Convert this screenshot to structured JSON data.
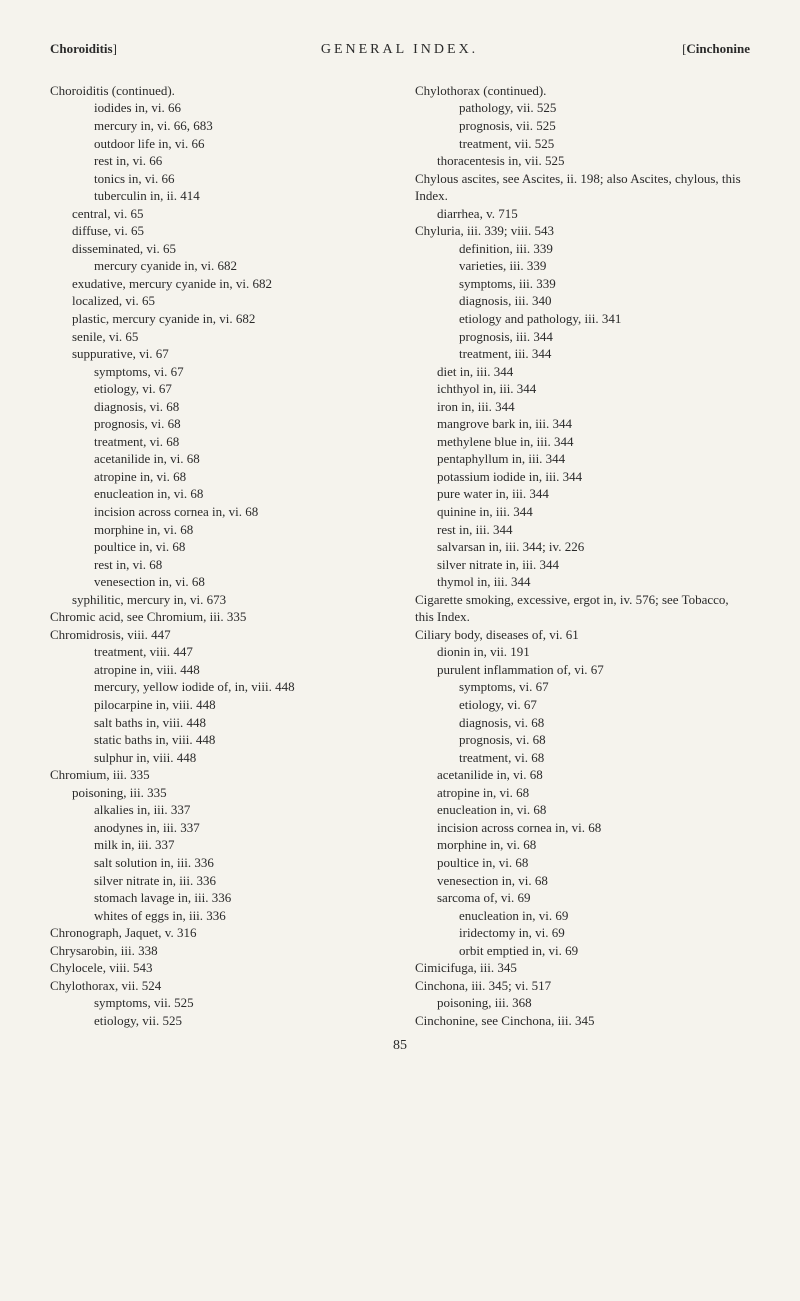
{
  "header": {
    "left": "Choroiditis",
    "center": "GENERAL INDEX.",
    "right": "Cinchonine"
  },
  "left_col": [
    {
      "lvl": 0,
      "text": "Choroiditis (continued)."
    },
    {
      "lvl": 2,
      "text": "iodides in, vi. 66"
    },
    {
      "lvl": 2,
      "text": "mercury in, vi. 66, 683"
    },
    {
      "lvl": 2,
      "text": "outdoor life in, vi. 66"
    },
    {
      "lvl": 2,
      "text": "rest in, vi. 66"
    },
    {
      "lvl": 2,
      "text": "tonics in, vi. 66"
    },
    {
      "lvl": 2,
      "text": "tuberculin in, ii. 414"
    },
    {
      "lvl": 1,
      "text": "central, vi. 65"
    },
    {
      "lvl": 1,
      "text": "diffuse, vi. 65"
    },
    {
      "lvl": 1,
      "text": "disseminated, vi. 65"
    },
    {
      "lvl": 2,
      "text": "mercury cyanide in, vi. 682"
    },
    {
      "lvl": 1,
      "text": "exudative, mercury cyanide in, vi. 682"
    },
    {
      "lvl": 1,
      "text": "localized, vi. 65"
    },
    {
      "lvl": 1,
      "text": "plastic, mercury cyanide in, vi. 682"
    },
    {
      "lvl": 1,
      "text": "senile, vi. 65"
    },
    {
      "lvl": 1,
      "text": "suppurative, vi. 67"
    },
    {
      "lvl": 2,
      "text": "symptoms, vi. 67"
    },
    {
      "lvl": 2,
      "text": "etiology, vi. 67"
    },
    {
      "lvl": 2,
      "text": "diagnosis, vi. 68"
    },
    {
      "lvl": 2,
      "text": "prognosis, vi. 68"
    },
    {
      "lvl": 2,
      "text": "treatment, vi. 68"
    },
    {
      "lvl": 2,
      "text": "acetanilide in, vi. 68"
    },
    {
      "lvl": 2,
      "text": "atropine in, vi. 68"
    },
    {
      "lvl": 2,
      "text": "enucleation in, vi. 68"
    },
    {
      "lvl": 2,
      "text": "incision across cornea in, vi. 68"
    },
    {
      "lvl": 2,
      "text": "morphine in, vi. 68"
    },
    {
      "lvl": 2,
      "text": "poultice in, vi. 68"
    },
    {
      "lvl": 2,
      "text": "rest in, vi. 68"
    },
    {
      "lvl": 2,
      "text": "venesection in, vi. 68"
    },
    {
      "lvl": 1,
      "text": "syphilitic, mercury in, vi. 673"
    },
    {
      "lvl": 0,
      "text": "Chromic acid, see Chromium, iii. 335"
    },
    {
      "lvl": 0,
      "text": "Chromidrosis, viii. 447"
    },
    {
      "lvl": 2,
      "text": "treatment, viii. 447"
    },
    {
      "lvl": 2,
      "text": "atropine in, viii. 448"
    },
    {
      "lvl": 2,
      "text": "mercury, yellow iodide of, in, viii. 448"
    },
    {
      "lvl": 2,
      "text": "pilocarpine in, viii. 448"
    },
    {
      "lvl": 2,
      "text": "salt baths in, viii. 448"
    },
    {
      "lvl": 2,
      "text": "static baths in, viii. 448"
    },
    {
      "lvl": 2,
      "text": "sulphur in, viii. 448"
    },
    {
      "lvl": 0,
      "text": "Chromium, iii. 335"
    },
    {
      "lvl": 1,
      "text": "poisoning, iii. 335"
    },
    {
      "lvl": 2,
      "text": "alkalies in, iii. 337"
    },
    {
      "lvl": 2,
      "text": "anodynes in, iii. 337"
    },
    {
      "lvl": 2,
      "text": "milk in, iii. 337"
    },
    {
      "lvl": 2,
      "text": "salt solution in, iii. 336"
    },
    {
      "lvl": 2,
      "text": "silver nitrate in, iii. 336"
    },
    {
      "lvl": 2,
      "text": "stomach lavage in, iii. 336"
    },
    {
      "lvl": 2,
      "text": "whites of eggs in, iii. 336"
    },
    {
      "lvl": 0,
      "text": "Chronograph, Jaquet, v. 316"
    },
    {
      "lvl": 0,
      "text": "Chrysarobin, iii. 338"
    },
    {
      "lvl": 0,
      "text": "Chylocele, viii. 543"
    },
    {
      "lvl": 0,
      "text": "Chylothorax, vii. 524"
    },
    {
      "lvl": 2,
      "text": "symptoms, vii. 525"
    },
    {
      "lvl": 2,
      "text": "etiology, vii. 525"
    }
  ],
  "right_col": [
    {
      "lvl": 0,
      "text": "Chylothorax (continued)."
    },
    {
      "lvl": 2,
      "text": "pathology, vii. 525"
    },
    {
      "lvl": 2,
      "text": "prognosis, vii. 525"
    },
    {
      "lvl": 2,
      "text": "treatment, vii. 525"
    },
    {
      "lvl": 1,
      "text": "thoracentesis in, vii. 525"
    },
    {
      "lvl": 0,
      "text": "Chylous ascites, see Ascites, ii. 198; also Ascites, chylous, this Index."
    },
    {
      "lvl": 1,
      "text": "diarrhea, v. 715"
    },
    {
      "lvl": 0,
      "text": "Chyluria, iii. 339; viii. 543"
    },
    {
      "lvl": 2,
      "text": "definition, iii. 339"
    },
    {
      "lvl": 2,
      "text": "varieties, iii. 339"
    },
    {
      "lvl": 2,
      "text": "symptoms, iii. 339"
    },
    {
      "lvl": 2,
      "text": "diagnosis, iii. 340"
    },
    {
      "lvl": 2,
      "text": "etiology and pathology, iii. 341"
    },
    {
      "lvl": 2,
      "text": "prognosis, iii. 344"
    },
    {
      "lvl": 2,
      "text": "treatment, iii. 344"
    },
    {
      "lvl": 1,
      "text": "diet in, iii. 344"
    },
    {
      "lvl": 1,
      "text": "ichthyol in, iii. 344"
    },
    {
      "lvl": 1,
      "text": "iron in, iii. 344"
    },
    {
      "lvl": 1,
      "text": "mangrove bark in, iii. 344"
    },
    {
      "lvl": 1,
      "text": "methylene blue in, iii. 344"
    },
    {
      "lvl": 1,
      "text": "pentaphyllum in, iii. 344"
    },
    {
      "lvl": 1,
      "text": "potassium iodide in, iii. 344"
    },
    {
      "lvl": 1,
      "text": "pure water in, iii. 344"
    },
    {
      "lvl": 1,
      "text": "quinine in, iii. 344"
    },
    {
      "lvl": 1,
      "text": "rest in, iii. 344"
    },
    {
      "lvl": 1,
      "text": "salvarsan in, iii. 344; iv. 226"
    },
    {
      "lvl": 1,
      "text": "silver nitrate in, iii. 344"
    },
    {
      "lvl": 1,
      "text": "thymol in, iii. 344"
    },
    {
      "lvl": 0,
      "text": "Cigarette smoking, excessive, ergot in, iv. 576; see Tobacco, this Index."
    },
    {
      "lvl": 0,
      "text": "Ciliary body, diseases of, vi. 61"
    },
    {
      "lvl": 1,
      "text": "dionin in, vii. 191"
    },
    {
      "lvl": 1,
      "text": "purulent inflammation of, vi. 67"
    },
    {
      "lvl": 2,
      "text": "symptoms, vi. 67"
    },
    {
      "lvl": 2,
      "text": "etiology, vi. 67"
    },
    {
      "lvl": 2,
      "text": "diagnosis, vi. 68"
    },
    {
      "lvl": 2,
      "text": "prognosis, vi. 68"
    },
    {
      "lvl": 2,
      "text": "treatment, vi. 68"
    },
    {
      "lvl": 1,
      "text": "acetanilide in, vi. 68"
    },
    {
      "lvl": 1,
      "text": "atropine in, vi. 68"
    },
    {
      "lvl": 1,
      "text": "enucleation in, vi. 68"
    },
    {
      "lvl": 1,
      "text": "incision across cornea in, vi. 68"
    },
    {
      "lvl": 1,
      "text": "morphine in, vi. 68"
    },
    {
      "lvl": 1,
      "text": "poultice in, vi. 68"
    },
    {
      "lvl": 1,
      "text": "venesection in, vi. 68"
    },
    {
      "lvl": 1,
      "text": "sarcoma of, vi. 69"
    },
    {
      "lvl": 2,
      "text": "enucleation in, vi. 69"
    },
    {
      "lvl": 2,
      "text": "iridectomy in, vi. 69"
    },
    {
      "lvl": 2,
      "text": "orbit emptied in, vi. 69"
    },
    {
      "lvl": 0,
      "text": "Cimicifuga, iii. 345"
    },
    {
      "lvl": 0,
      "text": "Cinchona, iii. 345; vi. 517"
    },
    {
      "lvl": 1,
      "text": "poisoning, iii. 368"
    },
    {
      "lvl": 0,
      "text": "Cinchonine, see Cinchona, iii. 345"
    }
  ],
  "page_number": "85"
}
